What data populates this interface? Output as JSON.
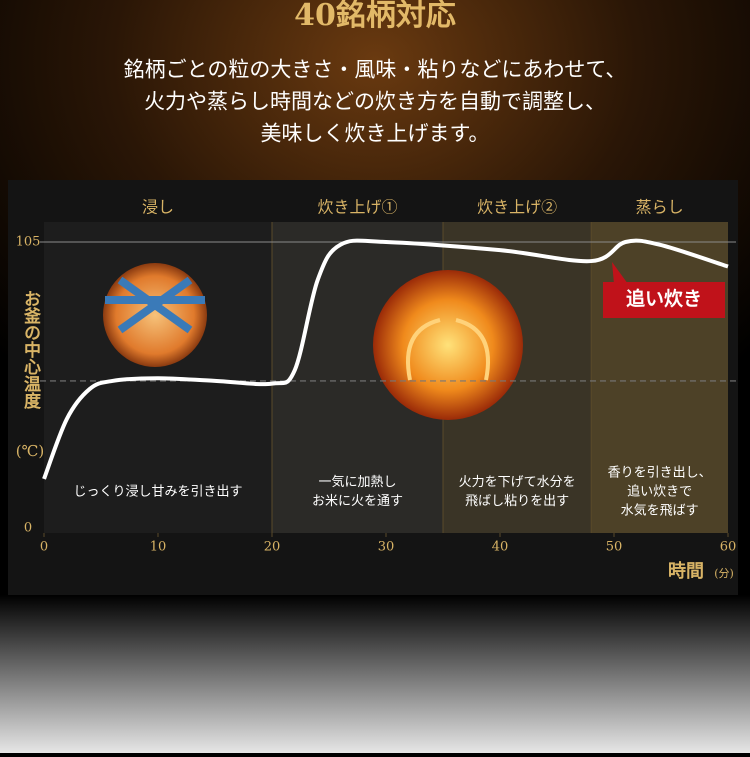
{
  "chart_data": {
    "type": "line",
    "title": "40銘柄対応",
    "subtitle": [
      "銘柄ごとの粒の大きさ・風味・粘りなどにあわせて、",
      "火力や蒸らし時間などの炊き方を自動で調整し、",
      "美味しく炊き上げます。"
    ],
    "x": [
      0,
      2,
      4,
      6,
      10,
      15,
      20,
      22,
      24,
      26,
      30,
      40,
      48,
      51,
      54,
      60
    ],
    "series": [
      {
        "color": "#ffffff",
        "values": [
          18,
          40,
          51,
          54,
          55,
          54,
          53,
          58,
          91,
          104,
          105,
          102,
          98,
          105,
          104,
          96
        ]
      }
    ],
    "xlim": [
      0,
      60
    ],
    "ylim": [
      0,
      105
    ],
    "xticks": [
      0,
      10,
      20,
      30,
      40,
      50,
      60
    ],
    "yticks": [
      0,
      105
    ],
    "reference_line": 54,
    "x_label": "時間",
    "x_unit": "(分)",
    "y_label": "お釜の中心温度",
    "y_unit": "(℃)",
    "phases": [
      {
        "label": "浸し",
        "start": 0,
        "end": 20,
        "color": "#1d1d1d",
        "description": [
          "じっくり浸し甘みを引き出す"
        ]
      },
      {
        "label": "炊き上げ①",
        "start": 20,
        "end": 35,
        "color": "#2b2a27",
        "description": [
          "一気に加熱し",
          "お米に火を通す"
        ]
      },
      {
        "label": "炊き上げ②",
        "start": 35,
        "end": 48,
        "color": "#3a3426",
        "description": [
          "火力を下げて水分を",
          "飛ばし粘りを出す"
        ]
      },
      {
        "label": "蒸らし",
        "start": 48,
        "end": 60,
        "color": "#4d4127",
        "description": [
          "香りを引き出し、",
          "追い炊きで",
          "水気を飛ばす"
        ]
      }
    ],
    "annotation": "追い炊き"
  }
}
